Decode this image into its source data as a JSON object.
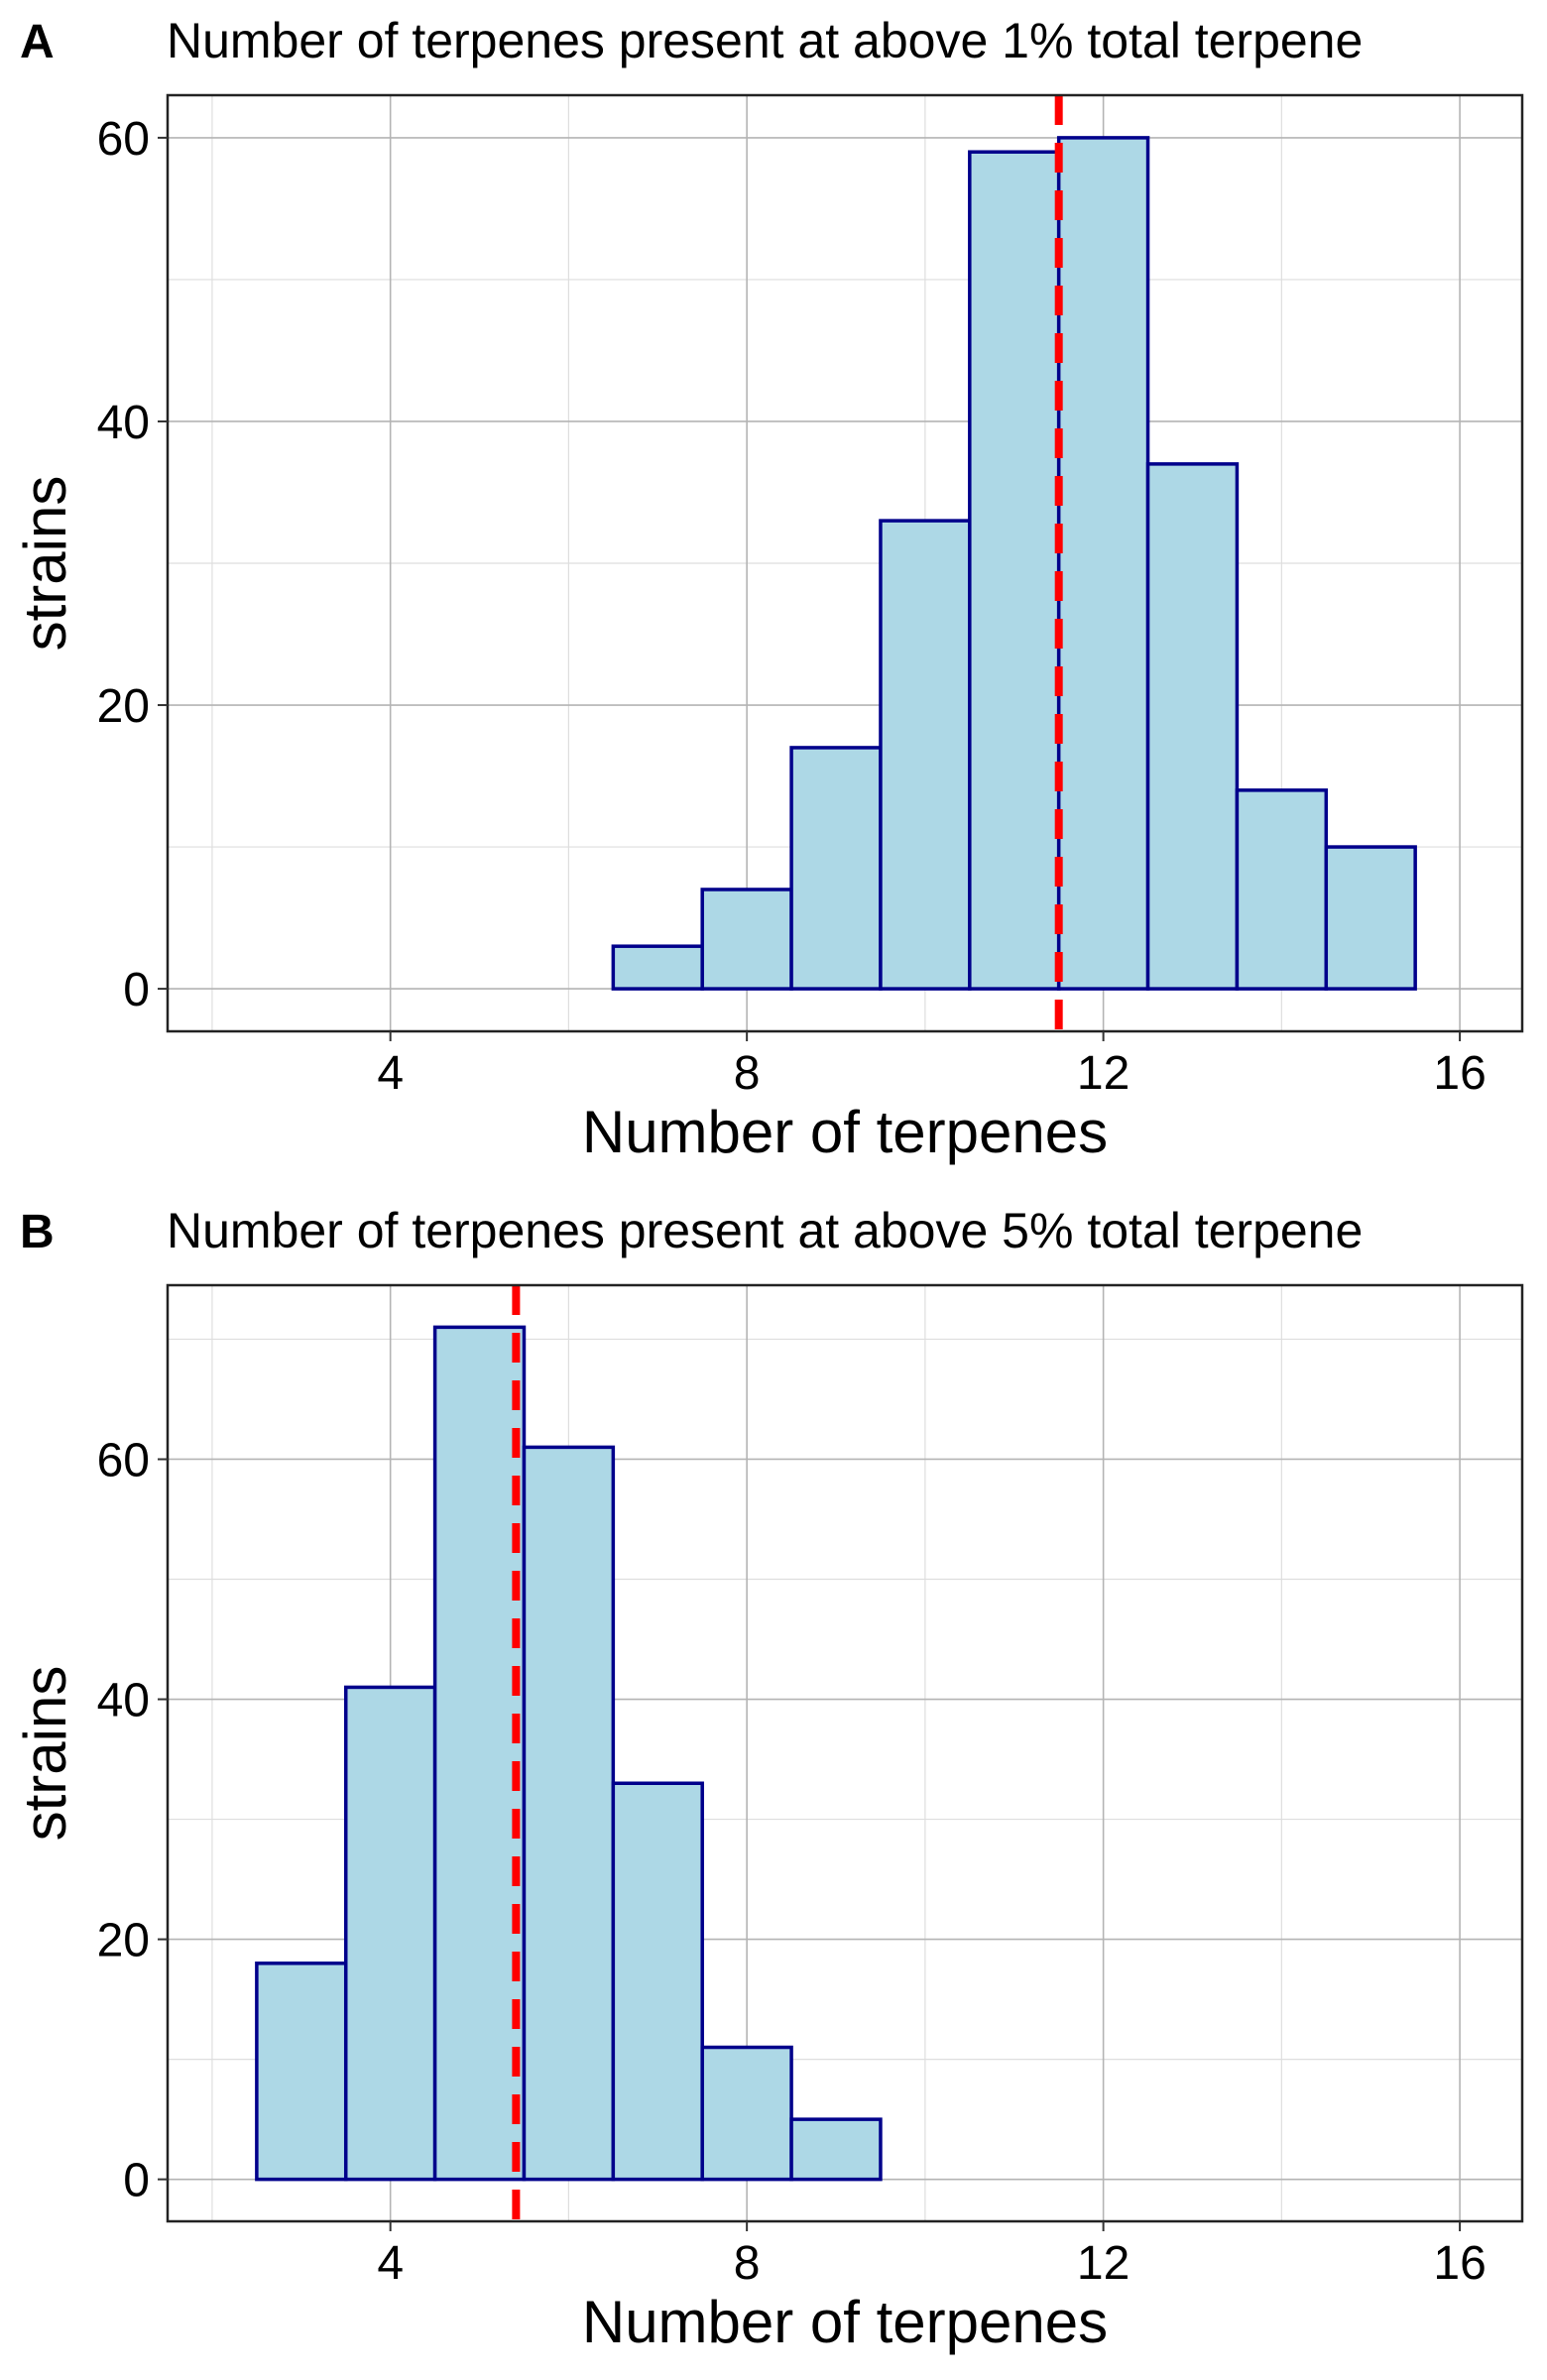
{
  "chart_data": [
    {
      "type": "bar",
      "panel_label": "A",
      "title": "Number of terpenes present at above 1% total terpene",
      "xlabel": "Number of terpenes",
      "ylabel": "strains",
      "x": [
        7,
        8,
        9,
        10,
        11,
        12,
        13,
        14,
        15
      ],
      "values": [
        3,
        7,
        17,
        33,
        59,
        60,
        37,
        14,
        10
      ],
      "bin_width": 1,
      "xlim": [
        1.5,
        16.7
      ],
      "ylim": [
        -3,
        63
      ],
      "xticks": [
        4,
        8,
        12,
        16
      ],
      "yticks": [
        0,
        20,
        40,
        60
      ],
      "mean_line": 11.5,
      "grid": true,
      "colors": {
        "fill": "#add8e6",
        "outline": "#00008b",
        "mean_line": "#ff0000"
      }
    },
    {
      "type": "bar",
      "panel_label": "B",
      "title": "Number of terpenes present at above 5% total terpene",
      "xlabel": "Number of terpenes",
      "ylabel": "strains",
      "x": [
        3,
        4,
        5,
        6,
        7,
        8,
        9
      ],
      "values": [
        18,
        41,
        71,
        61,
        33,
        11,
        5
      ],
      "bin_width": 1,
      "xlim": [
        1.5,
        16.7
      ],
      "ylim": [
        -3.5,
        74.5
      ],
      "xticks": [
        4,
        8,
        12,
        16
      ],
      "yticks": [
        0,
        20,
        40,
        60
      ],
      "mean_line": 5.41,
      "grid": true,
      "colors": {
        "fill": "#add8e6",
        "outline": "#00008b",
        "mean_line": "#ff0000"
      }
    }
  ]
}
